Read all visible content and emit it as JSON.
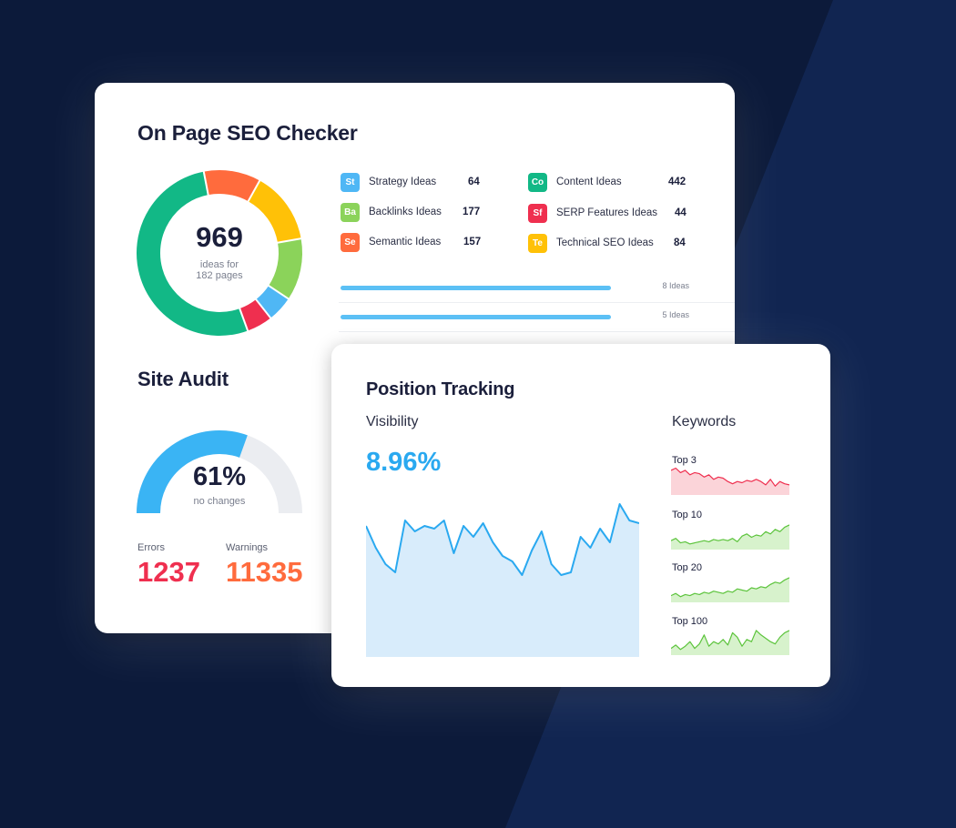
{
  "colors": {
    "background": "#0c1a3a",
    "accent_blue": "#2aa9f0",
    "error_red": "#ef2f4f",
    "warning_orange": "#ff6b3d"
  },
  "seo": {
    "title": "On Page SEO Checker",
    "total": "969",
    "total_sub_line1": "ideas for",
    "total_sub_line2": "182 pages",
    "segments": [
      {
        "color": "#12b886",
        "value": 52
      },
      {
        "color": "#ff6b3d",
        "value": 11
      },
      {
        "color": "#ffc107",
        "value": 14
      },
      {
        "color": "#8bd35a",
        "value": 12
      },
      {
        "color": "#4fb7f5",
        "value": 5
      },
      {
        "color": "#ef2f4f",
        "value": 5
      }
    ],
    "ideas": [
      {
        "badge": "St",
        "color": "#4fb7f5",
        "label": "Strategy Ideas",
        "count": "64"
      },
      {
        "badge": "Ba",
        "color": "#8bd35a",
        "label": "Backlinks Ideas",
        "count": "177"
      },
      {
        "badge": "Se",
        "color": "#ff6b3d",
        "label": "Semantic Ideas",
        "count": "157"
      },
      {
        "badge": "Co",
        "color": "#12b886",
        "label": "Content Ideas",
        "count": "442"
      },
      {
        "badge": "Sf",
        "color": "#ef2f4f",
        "label": "SERP Features Ideas",
        "count": "44"
      },
      {
        "badge": "Te",
        "color": "#ffc107",
        "label": "Technical SEO Ideas",
        "count": "84"
      }
    ],
    "progress_rows": [
      {
        "label": "8 Ideas"
      },
      {
        "label": "5 Ideas"
      }
    ]
  },
  "audit": {
    "title": "Site Audit",
    "percent": "61%",
    "percent_value": 61,
    "sub": "no changes",
    "errors_label": "Errors",
    "errors_value": "1237",
    "warnings_label": "Warnings",
    "warnings_value": "11335"
  },
  "tracking": {
    "title": "Position Tracking",
    "visibility_label": "Visibility",
    "visibility_value": "8.96%",
    "visibility_series": [
      48,
      40,
      34,
      31,
      50,
      46,
      48,
      47,
      50,
      38,
      48,
      44,
      49,
      42,
      37,
      35,
      30,
      39,
      46,
      34,
      30,
      31,
      44,
      40,
      47,
      42,
      56,
      50,
      49
    ],
    "keywords_label": "Keywords",
    "keyword_charts": [
      {
        "label": "Top 3",
        "color": "#ef2f4f",
        "fill": "#fbd4d9",
        "values": [
          22,
          24,
          20,
          22,
          18,
          20,
          19,
          16,
          18,
          14,
          16,
          15,
          12,
          10,
          12,
          11,
          13,
          12,
          14,
          12,
          9,
          14,
          8,
          12,
          10,
          9
        ]
      },
      {
        "label": "Top 10",
        "color": "#5cc43c",
        "fill": "#d7f2cc",
        "values": [
          8,
          10,
          6,
          7,
          5,
          6,
          7,
          8,
          7,
          9,
          8,
          9,
          8,
          10,
          7,
          12,
          14,
          11,
          13,
          12,
          16,
          14,
          18,
          16,
          20,
          22
        ]
      },
      {
        "label": "Top 20",
        "color": "#5cc43c",
        "fill": "#d7f2cc",
        "values": [
          6,
          8,
          5,
          7,
          6,
          8,
          7,
          9,
          8,
          10,
          9,
          8,
          10,
          9,
          12,
          11,
          10,
          13,
          12,
          14,
          13,
          16,
          18,
          17,
          20,
          22
        ]
      },
      {
        "label": "Top 100",
        "color": "#5cc43c",
        "fill": "#d7f2cc",
        "values": [
          6,
          9,
          5,
          8,
          12,
          6,
          10,
          18,
          8,
          12,
          10,
          14,
          9,
          20,
          16,
          8,
          14,
          12,
          22,
          18,
          15,
          12,
          10,
          16,
          20,
          22
        ]
      }
    ]
  }
}
